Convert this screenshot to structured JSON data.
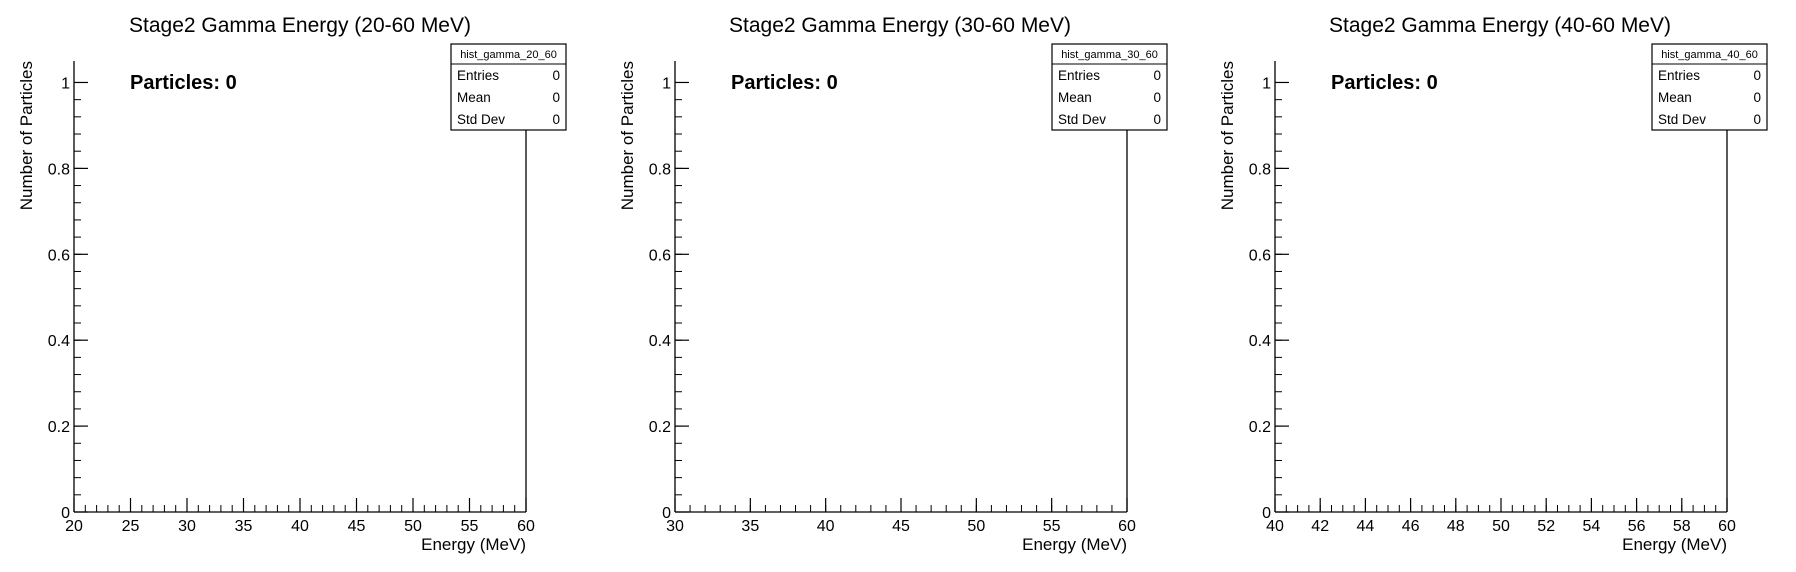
{
  "chart_data": [
    {
      "type": "histogram",
      "title": "Stage2 Gamma Energy (20-60 MeV)",
      "xlabel": "Energy (MeV)",
      "ylabel": "Number of Particles",
      "xlim": [
        20,
        60
      ],
      "ylim": [
        0,
        1.05
      ],
      "x_major_ticks": [
        20,
        25,
        30,
        35,
        40,
        45,
        50,
        55,
        60
      ],
      "x_minor_step": 1,
      "y_major_ticks": [
        0,
        0.2,
        0.4,
        0.6,
        0.8,
        1
      ],
      "y_minor_step": 0.04,
      "values": [],
      "annotation": "Particles: 0",
      "stats_box": {
        "name": "hist_gamma_20_60",
        "rows": [
          {
            "label": "Entries",
            "value": "0"
          },
          {
            "label": "Mean",
            "value": "0"
          },
          {
            "label": "Std Dev",
            "value": "0"
          }
        ]
      }
    },
    {
      "type": "histogram",
      "title": "Stage2 Gamma Energy (30-60 MeV)",
      "xlabel": "Energy (MeV)",
      "ylabel": "Number of Particles",
      "xlim": [
        30,
        60
      ],
      "ylim": [
        0,
        1.05
      ],
      "x_major_ticks": [
        30,
        35,
        40,
        45,
        50,
        55,
        60
      ],
      "x_minor_step": 1,
      "y_major_ticks": [
        0,
        0.2,
        0.4,
        0.6,
        0.8,
        1
      ],
      "y_minor_step": 0.04,
      "values": [],
      "annotation": "Particles: 0",
      "stats_box": {
        "name": "hist_gamma_30_60",
        "rows": [
          {
            "label": "Entries",
            "value": "0"
          },
          {
            "label": "Mean",
            "value": "0"
          },
          {
            "label": "Std Dev",
            "value": "0"
          }
        ]
      }
    },
    {
      "type": "histogram",
      "title": "Stage2 Gamma Energy (40-60 MeV)",
      "xlabel": "Energy (MeV)",
      "ylabel": "Number of Particles",
      "xlim": [
        40,
        60
      ],
      "ylim": [
        0,
        1.05
      ],
      "x_major_ticks": [
        40,
        42,
        44,
        46,
        48,
        50,
        52,
        54,
        56,
        58,
        60
      ],
      "x_minor_step": 0.5,
      "y_major_ticks": [
        0,
        0.2,
        0.4,
        0.6,
        0.8,
        1
      ],
      "y_minor_step": 0.04,
      "values": [],
      "annotation": "Particles: 0",
      "stats_box": {
        "name": "hist_gamma_40_60",
        "rows": [
          {
            "label": "Entries",
            "value": "0"
          },
          {
            "label": "Mean",
            "value": "0"
          },
          {
            "label": "Std Dev",
            "value": "0"
          }
        ]
      }
    }
  ]
}
